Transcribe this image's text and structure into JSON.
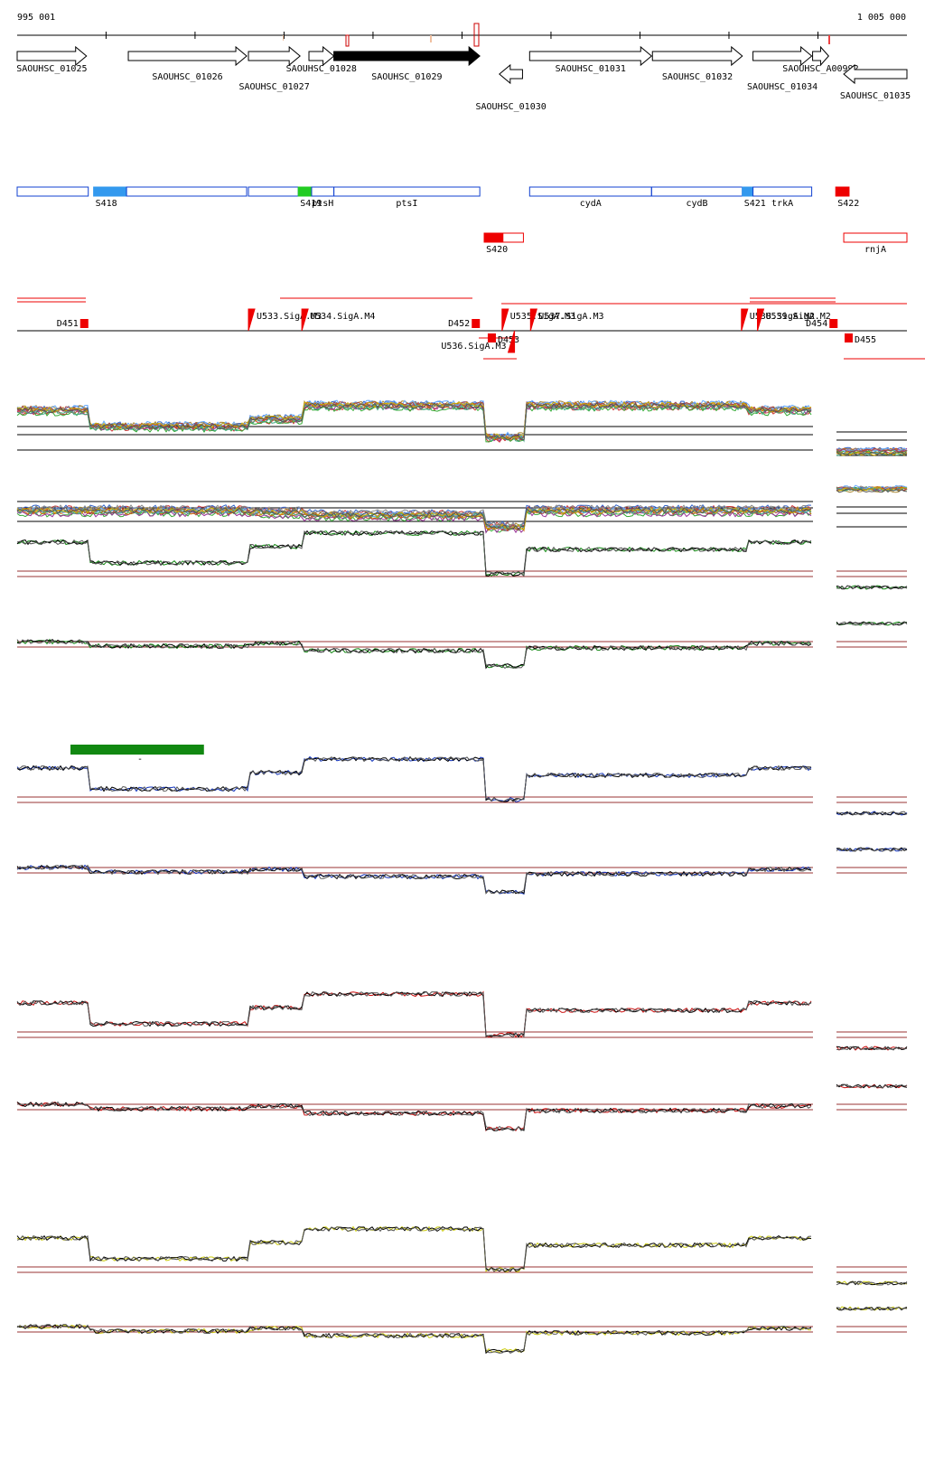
{
  "axis": {
    "start_label": "995 001",
    "end_label": "1 005 000",
    "start_bp": 995001,
    "end_bp": 1005000
  },
  "genes": [
    {
      "label": "SAOUHSC_01025",
      "start": 995001,
      "end": 995780,
      "strand": "+",
      "fill": "#ffffff"
    },
    {
      "label": "SAOUHSC_01026",
      "start": 996250,
      "end": 997580,
      "strand": "+",
      "fill": "#ffffff"
    },
    {
      "label": "SAOUHSC_01027",
      "start": 997600,
      "end": 998180,
      "strand": "+",
      "fill": "#ffffff"
    },
    {
      "label": "SAOUHSC_01028",
      "start": 998280,
      "end": 998560,
      "strand": "+",
      "fill": "#ffffff"
    },
    {
      "label": "SAOUHSC_01029",
      "start": 998560,
      "end": 1000200,
      "strand": "+",
      "fill": "#000000"
    },
    {
      "label": "SAOUHSC_01030",
      "start": 1000420,
      "end": 1000680,
      "strand": "-",
      "fill": "#ffffff"
    },
    {
      "label": "SAOUHSC_01031",
      "start": 1000760,
      "end": 1002130,
      "strand": "+",
      "fill": "#ffffff"
    },
    {
      "label": "SAOUHSC_01032",
      "start": 1002140,
      "end": 1003150,
      "strand": "+",
      "fill": "#ffffff"
    },
    {
      "label": "SAOUHSC_01034",
      "start": 1003270,
      "end": 1003930,
      "strand": "+",
      "fill": "#ffffff"
    },
    {
      "label": "SAOUHSC_A00992",
      "start": 1003940,
      "end": 1004120,
      "strand": "+",
      "fill": "#ffffff"
    },
    {
      "label": "SAOUHSC_01035",
      "start": 1004290,
      "end": 1005000,
      "strand": "-",
      "fill": "#ffffff"
    }
  ],
  "segments": [
    {
      "label": "",
      "start": 995001,
      "end": 995800,
      "color": "#1040d0",
      "filled": false
    },
    {
      "label": "S418",
      "start": 995860,
      "end": 996230,
      "color": "#3399ee",
      "filled": true
    },
    {
      "label": "",
      "start": 996230,
      "end": 997580,
      "color": "#1040d0",
      "filled": false
    },
    {
      "label": "",
      "start": 997600,
      "end": 998160,
      "color": "#1040d0",
      "filled": false
    },
    {
      "label": "S419",
      "start": 998160,
      "end": 998310,
      "color": "#22cc22",
      "filled": true
    },
    {
      "label": "ptsH",
      "start": 998310,
      "end": 998560,
      "color": "#1040d0",
      "filled": false
    },
    {
      "label": "ptsI",
      "start": 998560,
      "end": 1000200,
      "color": "#1040d0",
      "filled": false
    },
    {
      "label": "cydA",
      "start": 1000760,
      "end": 1002130,
      "color": "#1040d0",
      "filled": false
    },
    {
      "label": "cydB",
      "start": 1002130,
      "end": 1003150,
      "color": "#1040d0",
      "filled": false
    },
    {
      "label": "S421",
      "start": 1003150,
      "end": 1003270,
      "color": "#3399ee",
      "filled": true
    },
    {
      "label": "trkA",
      "start": 1003270,
      "end": 1003930,
      "color": "#1040d0",
      "filled": false
    },
    {
      "label": "S422",
      "start": 1004200,
      "end": 1004350,
      "color": "#ee0000",
      "filled": true
    },
    {
      "label": "S420",
      "start": 1000250,
      "end": 1000460,
      "color": "#ee0000",
      "filled": true,
      "row": 2,
      "outline_end": 1000690
    },
    {
      "label": "rnjA",
      "start": 1004290,
      "end": 1005000,
      "color": "#ee0000",
      "filled": false,
      "row": 2
    }
  ],
  "features": [
    {
      "label": "D451",
      "pos": 995750,
      "side": "top"
    },
    {
      "label": "U533.SigA.M3",
      "pos": 997600,
      "side": "top"
    },
    {
      "label": "U534.SigA.M4",
      "pos": 998200,
      "side": "top"
    },
    {
      "label": "D452",
      "pos": 1000150,
      "side": "top"
    },
    {
      "label": "U535.SigA.M3",
      "pos": 1000450,
      "side": "top"
    },
    {
      "label": "U537.SigA.M3",
      "pos": 1000770,
      "side": "top"
    },
    {
      "label": "D453",
      "pos": 1000330,
      "side": "bottom"
    },
    {
      "label": "U536.SigA.M3",
      "pos": 1000590,
      "side": "bottom"
    },
    {
      "label": "U538.SigA.M2",
      "pos": 1003140,
      "side": "top"
    },
    {
      "label": "U539.SigA.M2",
      "pos": 1003320,
      "side": "top"
    },
    {
      "label": "D454",
      "pos": 1004170,
      "side": "top"
    },
    {
      "label": "D455",
      "pos": 1004340,
      "side": "bottom"
    }
  ],
  "scale_bar": {
    "label": "-",
    "start": 995600,
    "end": 997100
  },
  "colors": {
    "green": "#118811",
    "blue": "#1133bb",
    "red": "#cc1111",
    "yellow": "#cccc11",
    "threshold": "#993333"
  }
}
